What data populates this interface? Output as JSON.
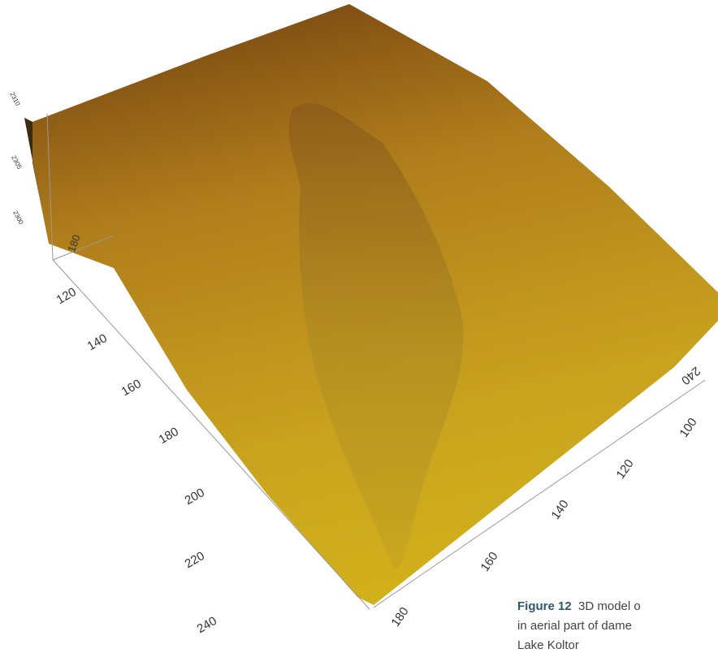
{
  "figure": {
    "axis_vertical_labels": [
      "2310",
      "2305",
      "2300",
      "180"
    ],
    "axis_left_labels": [
      "120",
      "140",
      "160",
      "180",
      "200",
      "220",
      "240"
    ],
    "axis_right_labels": [
      "240",
      "100",
      "120",
      "140",
      "160",
      "180"
    ],
    "caption": {
      "label": "Figure 12",
      "lines": [
        "3D model o",
        "in aerial part of dame",
        "Lake Koltor"
      ]
    }
  }
}
